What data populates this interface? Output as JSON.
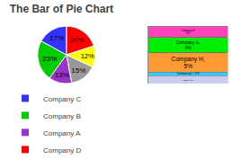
{
  "chart_data": [
    {
      "type": "pie",
      "title": "The Bar of Pie Chart",
      "categories": [
        "Company D",
        null,
        null,
        "Company A",
        "Company B",
        "Company C"
      ],
      "values": [
        20,
        12,
        15,
        13,
        23,
        17
      ],
      "value_labels": [
        "20%",
        "12%",
        "15%",
        "13%",
        "23%",
        "17%"
      ],
      "colors": [
        "#FF0000",
        "#FFFF00",
        "#999999",
        "#9933CC",
        "#00CC00",
        "#3333FF"
      ],
      "data_labels": true,
      "legend": "lower left"
    },
    {
      "type": "bar",
      "stacked": true,
      "values": [
        3,
        4,
        5,
        1,
        2
      ],
      "value_labels": [
        "Company F,\n3%",
        "Company G,\n4%",
        "Company H,\n5%",
        "Company I, 1%",
        "Other, 2%"
      ],
      "colors": [
        "#FF44BB",
        "#00EE00",
        "#FF9933",
        "#33CCFF",
        "#CCCCEE"
      ],
      "data_labels": true,
      "ylim": [
        0,
        15
      ],
      "tick_labels": false
    }
  ]
}
